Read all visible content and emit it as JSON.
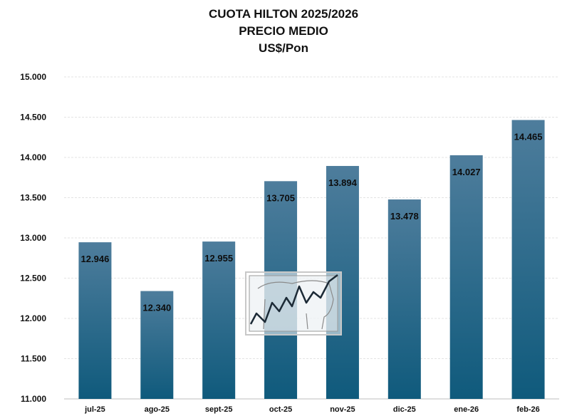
{
  "chart_data": {
    "type": "bar",
    "title": "CUOTA HILTON 2025/2026",
    "subtitle": "PRECIO MEDIO",
    "unit_label": "US$/Pon",
    "categories": [
      "jul-25",
      "ago-25",
      "sept-25",
      "oct-25",
      "nov-25",
      "dic-25",
      "ene-26",
      "feb-26"
    ],
    "values": [
      12946,
      12340,
      12955,
      13705,
      13894,
      13478,
      14027,
      14465
    ],
    "value_labels": [
      "12.946",
      "12.340",
      "12.955",
      "13.705",
      "13.894",
      "13.478",
      "14.027",
      "14.465"
    ],
    "ylim": [
      11000,
      15000
    ],
    "yticks": [
      11000,
      11500,
      12000,
      12500,
      13000,
      13500,
      14000,
      14500,
      15000
    ],
    "ytick_labels": [
      "11.000",
      "11.500",
      "12.000",
      "12.500",
      "13.000",
      "13.500",
      "14.000",
      "14.500",
      "15.000"
    ],
    "grid": true,
    "bar_color_top": "#4e7d9c",
    "bar_color_bottom": "#0f5a7c",
    "watermark_icon": "rising-line-chart-cattle-icon"
  }
}
